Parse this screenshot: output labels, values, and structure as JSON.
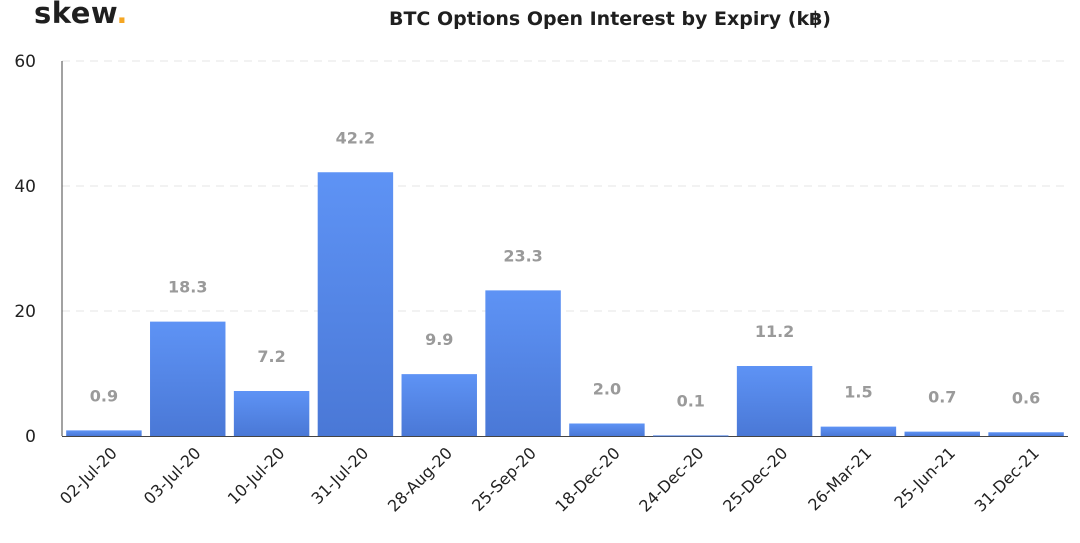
{
  "brand": {
    "name": "skew",
    "dot": "."
  },
  "chart_data": {
    "type": "bar",
    "title": "BTC Options Open Interest by Expiry (k฿)",
    "xlabel": "",
    "ylabel": "",
    "categories": [
      "02-Jul-20",
      "03-Jul-20",
      "10-Jul-20",
      "31-Jul-20",
      "28-Aug-20",
      "25-Sep-20",
      "18-Dec-20",
      "24-Dec-20",
      "25-Dec-20",
      "26-Mar-21",
      "25-Jun-21",
      "31-Dec-21"
    ],
    "values": [
      0.9,
      18.3,
      7.2,
      42.2,
      9.9,
      23.3,
      2.0,
      0.1,
      11.2,
      1.5,
      0.7,
      0.6
    ],
    "data_labels": [
      "0.9",
      "18.3",
      "7.2",
      "42.2",
      "9.9",
      "23.3",
      "2.0",
      "0.1",
      "11.2",
      "1.5",
      "0.7",
      "0.6"
    ],
    "ylim": [
      0,
      60
    ],
    "yticks": [
      "0",
      "20",
      "40",
      "60"
    ],
    "grid": true,
    "bar_color": "#5b8def",
    "bar_color_dark": "#4a78d6"
  }
}
